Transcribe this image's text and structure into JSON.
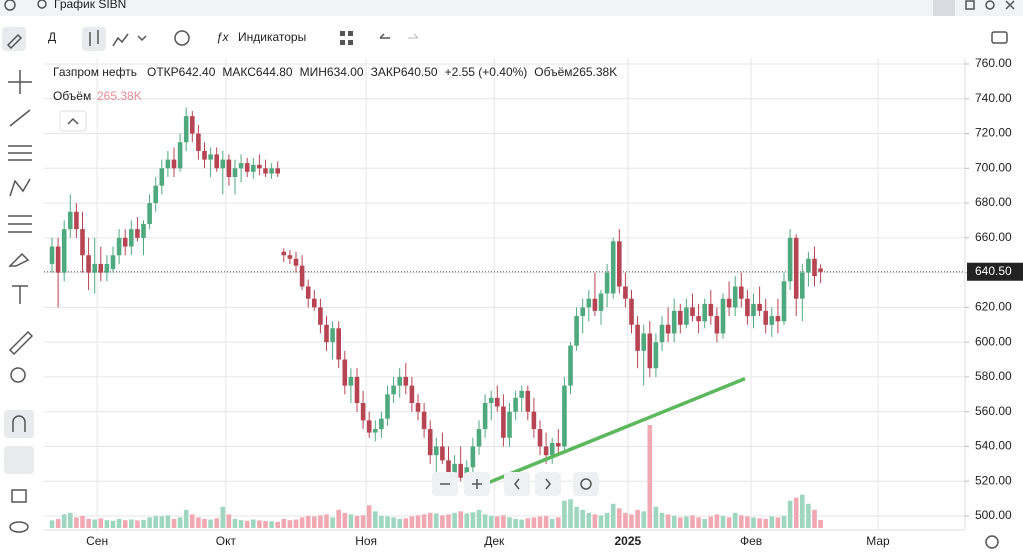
{
  "app": {
    "search": "График SIBN",
    "toolbar": {
      "period": "Д",
      "indicators": "Индикаторы"
    }
  },
  "chart_data": {
    "type": "candlestick",
    "header": {
      "name": "Газпром нефть",
      "items": [
        "ОТКР642.40",
        "МАКС644.80",
        "МИН634.00",
        "ЗАКР640.50",
        "+2.55 (+0.40%)",
        "Объём265.38K"
      ],
      "volume_label": "Объём",
      "volume_value": "265.38K"
    },
    "candles": [
      [
        645,
        660,
        640,
        655
      ],
      [
        655,
        660,
        620,
        640
      ],
      [
        640,
        670,
        635,
        665
      ],
      [
        665,
        685,
        660,
        675
      ],
      [
        675,
        680,
        660,
        665
      ],
      [
        665,
        675,
        640,
        650
      ],
      [
        650,
        660,
        630,
        640
      ],
      [
        640,
        660,
        628,
        645
      ],
      [
        645,
        655,
        635,
        640
      ],
      [
        640,
        650,
        635,
        645
      ],
      [
        642,
        655,
        640,
        650
      ],
      [
        650,
        665,
        645,
        660
      ],
      [
        660,
        665,
        650,
        655
      ],
      [
        655,
        670,
        650,
        665
      ],
      [
        665,
        672,
        658,
        660
      ],
      [
        660,
        670,
        650,
        668
      ],
      [
        668,
        685,
        665,
        680
      ],
      [
        680,
        695,
        675,
        690
      ],
      [
        690,
        705,
        685,
        700
      ],
      [
        700,
        710,
        695,
        705
      ],
      [
        705,
        712,
        695,
        700
      ],
      [
        700,
        720,
        698,
        715
      ],
      [
        715,
        735,
        710,
        730
      ],
      [
        730,
        733,
        715,
        720
      ],
      [
        720,
        725,
        705,
        710
      ],
      [
        710,
        715,
        700,
        705
      ],
      [
        705,
        712,
        695,
        708
      ],
      [
        708,
        712,
        698,
        700
      ],
      [
        700,
        710,
        685,
        705
      ],
      [
        705,
        708,
        690,
        695
      ],
      [
        695,
        705,
        685,
        700
      ],
      [
        700,
        708,
        692,
        703
      ],
      [
        703,
        706,
        695,
        698
      ],
      [
        698,
        706,
        694,
        702
      ],
      [
        702,
        708,
        696,
        700
      ],
      [
        700,
        705,
        695,
        697
      ],
      [
        697,
        703,
        694,
        700
      ],
      [
        700,
        704,
        695,
        697
      ],
      [
        652,
        654,
        646,
        650
      ],
      [
        650,
        653,
        645,
        648
      ],
      [
        648,
        652,
        640,
        644
      ],
      [
        644,
        650,
        630,
        632
      ],
      [
        632,
        636,
        620,
        625
      ],
      [
        625,
        630,
        618,
        620
      ],
      [
        620,
        625,
        605,
        610
      ],
      [
        610,
        615,
        595,
        600
      ],
      [
        600,
        612,
        590,
        608
      ],
      [
        608,
        612,
        585,
        590
      ],
      [
        590,
        595,
        570,
        575
      ],
      [
        575,
        585,
        565,
        580
      ],
      [
        580,
        585,
        560,
        565
      ],
      [
        565,
        572,
        550,
        555
      ],
      [
        555,
        560,
        545,
        548
      ],
      [
        548,
        555,
        543,
        550
      ],
      [
        550,
        560,
        545,
        556
      ],
      [
        556,
        575,
        552,
        570
      ],
      [
        570,
        580,
        565,
        575
      ],
      [
        575,
        585,
        568,
        580
      ],
      [
        580,
        588,
        570,
        575
      ],
      [
        575,
        580,
        560,
        565
      ],
      [
        565,
        570,
        555,
        560
      ],
      [
        560,
        565,
        545,
        550
      ],
      [
        550,
        555,
        530,
        535
      ],
      [
        535,
        545,
        525,
        540
      ],
      [
        540,
        548,
        530,
        532
      ],
      [
        532,
        540,
        520,
        525
      ],
      [
        525,
        535,
        515,
        530
      ],
      [
        530,
        540,
        520,
        522
      ],
      [
        522,
        532,
        515,
        528
      ],
      [
        528,
        545,
        525,
        540
      ],
      [
        540,
        555,
        535,
        550
      ],
      [
        550,
        570,
        545,
        565
      ],
      [
        565,
        572,
        555,
        568
      ],
      [
        568,
        575,
        560,
        563
      ],
      [
        563,
        570,
        540,
        545
      ],
      [
        545,
        565,
        540,
        560
      ],
      [
        560,
        572,
        555,
        568
      ],
      [
        568,
        575,
        560,
        572
      ],
      [
        572,
        575,
        555,
        560
      ],
      [
        560,
        568,
        545,
        550
      ],
      [
        550,
        555,
        535,
        540
      ],
      [
        540,
        548,
        530,
        535
      ],
      [
        535,
        545,
        530,
        542
      ],
      [
        542,
        550,
        535,
        540
      ],
      [
        540,
        580,
        538,
        575
      ],
      [
        575,
        600,
        570,
        598
      ],
      [
        598,
        620,
        595,
        615
      ],
      [
        615,
        625,
        605,
        620
      ],
      [
        620,
        630,
        612,
        625
      ],
      [
        625,
        640,
        615,
        618
      ],
      [
        618,
        630,
        610,
        628
      ],
      [
        628,
        645,
        620,
        640
      ],
      [
        628,
        660,
        625,
        658
      ],
      [
        658,
        665,
        628,
        632
      ],
      [
        632,
        640,
        620,
        625
      ],
      [
        625,
        630,
        605,
        610
      ],
      [
        610,
        615,
        585,
        595
      ],
      [
        595,
        610,
        575,
        605
      ],
      [
        605,
        612,
        580,
        585
      ],
      [
        585,
        605,
        580,
        600
      ],
      [
        600,
        615,
        595,
        610
      ],
      [
        610,
        620,
        600,
        605
      ],
      [
        605,
        625,
        600,
        618
      ],
      [
        618,
        622,
        605,
        610
      ],
      [
        610,
        625,
        608,
        620
      ],
      [
        620,
        628,
        612,
        615
      ],
      [
        615,
        622,
        605,
        612
      ],
      [
        612,
        625,
        608,
        622
      ],
      [
        622,
        630,
        610,
        615
      ],
      [
        615,
        620,
        600,
        605
      ],
      [
        605,
        628,
        602,
        625
      ],
      [
        625,
        635,
        615,
        620
      ],
      [
        620,
        638,
        615,
        632
      ],
      [
        632,
        640,
        620,
        625
      ],
      [
        625,
        630,
        610,
        615
      ],
      [
        615,
        628,
        608,
        622
      ],
      [
        622,
        632,
        615,
        618
      ],
      [
        618,
        625,
        605,
        610
      ],
      [
        610,
        620,
        603,
        615
      ],
      [
        615,
        625,
        605,
        612
      ],
      [
        612,
        640,
        610,
        635
      ],
      [
        635,
        665,
        630,
        660
      ],
      [
        660,
        662,
        615,
        625
      ],
      [
        625,
        645,
        612,
        640
      ],
      [
        640,
        652,
        632,
        648
      ],
      [
        648,
        655,
        632,
        638
      ],
      [
        642.4,
        644.8,
        634,
        640.5
      ]
    ],
    "volume": [
      250,
      300,
      450,
      500,
      350,
      400,
      300,
      280,
      320,
      260,
      240,
      300,
      260,
      280,
      250,
      270,
      350,
      400,
      380,
      420,
      300,
      350,
      600,
      450,
      350,
      300,
      280,
      320,
      700,
      450,
      300,
      260,
      240,
      280,
      250,
      230,
      220,
      200,
      300,
      260,
      280,
      350,
      400,
      380,
      420,
      450,
      350,
      600,
      500,
      450,
      400,
      420,
      750,
      550,
      400,
      380,
      350,
      300,
      320,
      380,
      420,
      450,
      500,
      480,
      420,
      450,
      500,
      550,
      480,
      520,
      600,
      450,
      400,
      380,
      420,
      350,
      300,
      280,
      320,
      350,
      380,
      400,
      300,
      350,
      900,
      950,
      700,
      600,
      500,
      450,
      420,
      500,
      800,
      650,
      500,
      450,
      600,
      550,
      3400,
      700,
      500,
      450,
      400,
      350,
      380,
      420,
      350,
      300,
      380,
      450,
      400,
      350,
      500,
      420,
      380,
      350,
      320,
      300,
      380,
      350,
      400,
      900,
      1000,
      1100,
      800,
      600,
      265.38
    ],
    "ylim": [
      500,
      760
    ],
    "yticks": [
      {
        "value": 500,
        "label": "500.00"
      },
      {
        "value": 520,
        "label": "520.00"
      },
      {
        "value": 540,
        "label": "540.00"
      },
      {
        "value": 560,
        "label": "560.00"
      },
      {
        "value": 580,
        "label": "580.00"
      },
      {
        "value": 600,
        "label": "600.00"
      },
      {
        "value": 620,
        "label": "620.00"
      },
      {
        "value": 640,
        "label": "640.00"
      },
      {
        "value": 660,
        "label": "660.00"
      },
      {
        "value": 680,
        "label": "680.00"
      },
      {
        "value": 700,
        "label": "700.00"
      },
      {
        "value": 720,
        "label": "720.00"
      },
      {
        "value": 740,
        "label": "740.00"
      },
      {
        "value": 760,
        "label": "760.00"
      }
    ],
    "xticks": [
      {
        "value": 7.4,
        "label": "Сен"
      },
      {
        "value": 28.5,
        "label": "Окт"
      },
      {
        "value": 51.5,
        "label": "Ноя"
      },
      {
        "value": 72.5,
        "label": "Дек"
      },
      {
        "value": 94.4,
        "label": "2025"
      },
      {
        "value": 114.6,
        "label": "Фев"
      },
      {
        "value": 135.4,
        "label": "Мар"
      }
    ],
    "last_price": {
      "value": 640.5,
      "label": "640.50"
    },
    "trendline": {
      "x": [
        69.3,
        113.6
      ],
      "y": [
        516,
        579
      ]
    },
    "colors": {
      "up": "#4fa97f",
      "down": "#b64452",
      "vol_up": "#9ed6c0",
      "vol_down": "#f0a9b3",
      "trend": "#5cb85c"
    },
    "grid": true
  }
}
